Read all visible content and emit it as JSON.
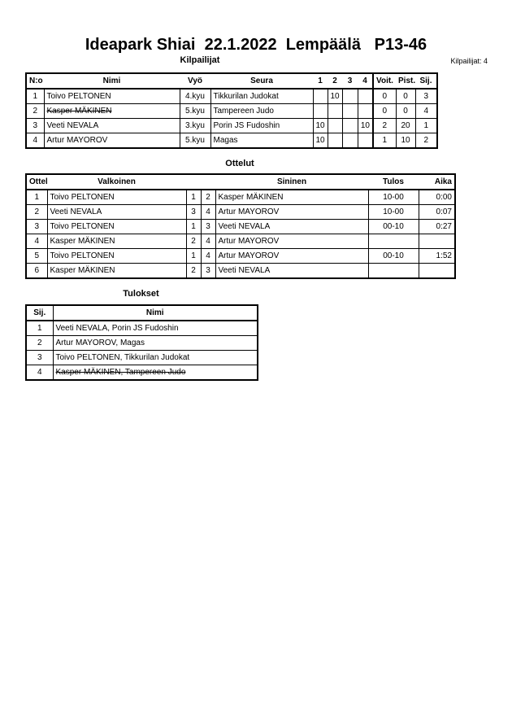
{
  "title": "Ideapark Shiai  22.1.2022  Lempäälä   P13-46",
  "competitors_section": {
    "heading": "Kilpailijat",
    "count_label": "Kilpailijat: 4",
    "columns": [
      "N:o",
      "Nimi",
      "Vyö",
      "Seura",
      "1",
      "2",
      "3",
      "4",
      "Voit.",
      "Pist.",
      "Sij."
    ],
    "rows": [
      {
        "no": "1",
        "name": "Toivo PELTONEN",
        "belt": "4.kyu",
        "club": "Tikkurilan Judokat",
        "s1": "",
        "s2": "10",
        "s3": "",
        "s4": "",
        "wins": "0",
        "points": "0",
        "place": "3",
        "struck": false
      },
      {
        "no": "2",
        "name": "Kasper MÄKINEN",
        "belt": "5.kyu",
        "club": "Tampereen Judo",
        "s1": "",
        "s2": "",
        "s3": "",
        "s4": "",
        "wins": "0",
        "points": "0",
        "place": "4",
        "struck": true
      },
      {
        "no": "3",
        "name": "Veeti NEVALA",
        "belt": "3.kyu",
        "club": "Porin JS Fudoshin",
        "s1": "10",
        "s2": "",
        "s3": "",
        "s4": "10",
        "wins": "2",
        "points": "20",
        "place": "1",
        "struck": false
      },
      {
        "no": "4",
        "name": "Artur MAYOROV",
        "belt": "5.kyu",
        "club": "Magas",
        "s1": "10",
        "s2": "",
        "s3": "",
        "s4": "",
        "wins": "1",
        "points": "10",
        "place": "2",
        "struck": false
      }
    ]
  },
  "matches_section": {
    "heading": "Ottelut",
    "columns": [
      "Ottelu",
      "Valkoinen",
      "Sininen",
      "Tulos",
      "Aika"
    ],
    "rows": [
      {
        "no": "1",
        "white": "Toivo PELTONEN",
        "wn": "1",
        "bn": "2",
        "blue": "Kasper MÄKINEN",
        "result": "10-00",
        "time": "0:00"
      },
      {
        "no": "2",
        "white": "Veeti NEVALA",
        "wn": "3",
        "bn": "4",
        "blue": "Artur MAYOROV",
        "result": "10-00",
        "time": "0:07"
      },
      {
        "no": "3",
        "white": "Toivo PELTONEN",
        "wn": "1",
        "bn": "3",
        "blue": "Veeti NEVALA",
        "result": "00-10",
        "time": "0:27"
      },
      {
        "no": "4",
        "white": "Kasper MÄKINEN",
        "wn": "2",
        "bn": "4",
        "blue": "Artur MAYOROV",
        "result": "",
        "time": ""
      },
      {
        "no": "5",
        "white": "Toivo PELTONEN",
        "wn": "1",
        "bn": "4",
        "blue": "Artur MAYOROV",
        "result": "00-10",
        "time": "1:52"
      },
      {
        "no": "6",
        "white": "Kasper MÄKINEN",
        "wn": "2",
        "bn": "3",
        "blue": "Veeti NEVALA",
        "result": "",
        "time": ""
      }
    ]
  },
  "results_section": {
    "heading": "Tulokset",
    "columns": [
      "Sij.",
      "Nimi"
    ],
    "rows": [
      {
        "place": "1",
        "name": "Veeti NEVALA, Porin JS Fudoshin",
        "struck": false
      },
      {
        "place": "2",
        "name": "Artur MAYOROV, Magas",
        "struck": false
      },
      {
        "place": "3",
        "name": "Toivo PELTONEN, Tikkurilan Judokat",
        "struck": false
      },
      {
        "place": "4",
        "name": "Kasper MÄKINEN, Tampereen Judo",
        "struck": true
      }
    ]
  }
}
